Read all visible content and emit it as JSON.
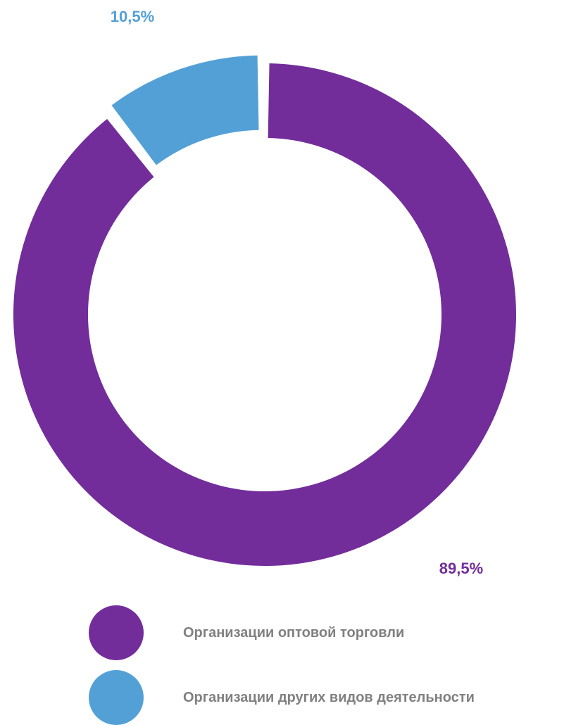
{
  "chart_data": {
    "type": "pie",
    "variant": "donut",
    "title": "",
    "slices": [
      {
        "name": "Организации оптовой торговли",
        "value": 89.5,
        "label": "89,5%",
        "color": "#722D9B"
      },
      {
        "name": "Организации других видов деятельности",
        "value": 10.5,
        "label": "10,5%",
        "color": "#53A0D7"
      }
    ],
    "legend_position": "bottom",
    "start_angle": "12 o'clock, clockwise"
  }
}
